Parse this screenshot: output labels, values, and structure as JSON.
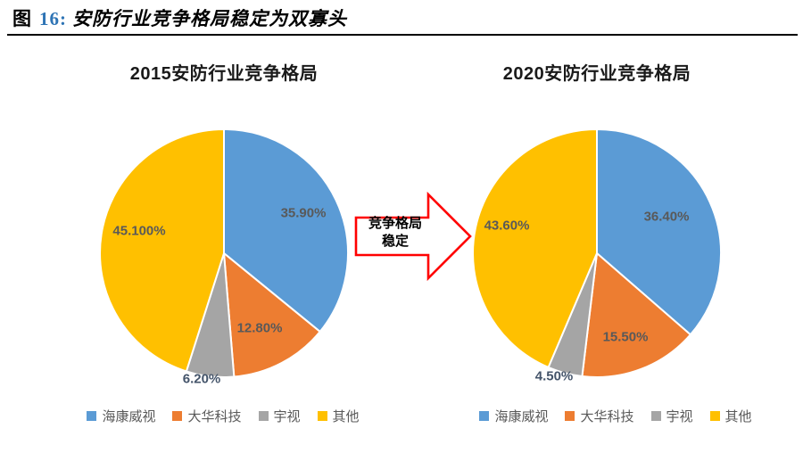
{
  "header": {
    "figure_label": "图",
    "figure_number": "16:",
    "title": "安防行业竞争格局稳定为双寡头"
  },
  "arrow": {
    "line1": "竞争格局",
    "line2": "稳定"
  },
  "colors": {
    "hikvision_blue": "#5B9BD5",
    "dahua_orange": "#ED7D31",
    "uniview_gray": "#A5A5A5",
    "others_yellow": "#FFC000",
    "arrow_red": "#FF0000",
    "figure_number_blue": "#2E74B5",
    "data_label_gray": "#595959"
  },
  "chart_data": [
    {
      "type": "pie",
      "title": "2015安防行业竞争格局",
      "legend_position": "bottom",
      "start_angle_deg": 0,
      "direction": "clockwise",
      "slices": [
        {
          "name": "海康威视",
          "value": 35.9,
          "label": "35.90%",
          "color": "#5B9BD5"
        },
        {
          "name": "大华科技",
          "value": 12.8,
          "label": "12.80%",
          "color": "#ED7D31"
        },
        {
          "name": "宇视",
          "value": 6.2,
          "label": "6.20%",
          "color": "#A5A5A5"
        },
        {
          "name": "其他",
          "value": 45.1,
          "label": "45.100%",
          "color": "#FFC000"
        }
      ]
    },
    {
      "type": "pie",
      "title": "2020安防行业竞争格局",
      "legend_position": "bottom",
      "start_angle_deg": 0,
      "direction": "clockwise",
      "slices": [
        {
          "name": "海康威视",
          "value": 36.4,
          "label": "36.40%",
          "color": "#5B9BD5"
        },
        {
          "name": "大华科技",
          "value": 15.5,
          "label": "15.50%",
          "color": "#ED7D31"
        },
        {
          "name": "宇视",
          "value": 4.5,
          "label": "4.50%",
          "color": "#A5A5A5"
        },
        {
          "name": "其他",
          "value": 43.6,
          "label": "43.60%",
          "color": "#FFC000"
        }
      ]
    }
  ]
}
